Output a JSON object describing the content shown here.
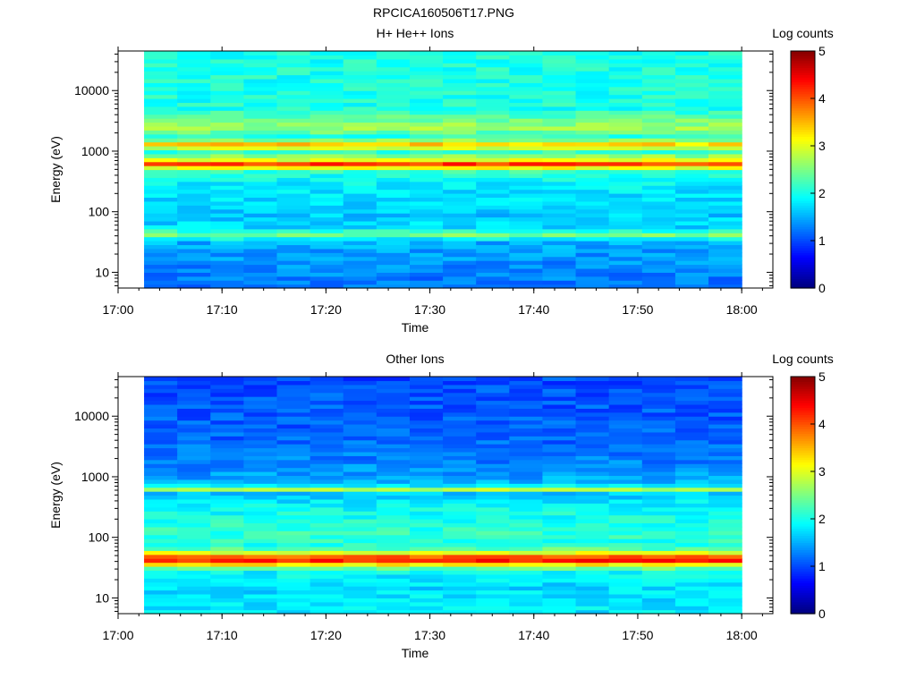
{
  "figure": {
    "title": "RPCICA160506T17.PNG"
  },
  "chart_data": [
    {
      "type": "heatmap",
      "title": "H+ He++ Ions",
      "xlabel": "Time",
      "ylabel": "Energy (eV)",
      "x_scale": "time",
      "y_scale": "log",
      "xlim": [
        "17:00",
        "18:03"
      ],
      "ylim": [
        5.5,
        45000
      ],
      "x_ticks": [
        "17:00",
        "17:10",
        "17:20",
        "17:30",
        "17:40",
        "17:50",
        "18:00"
      ],
      "y_ticks": [
        10,
        100,
        1000,
        10000
      ],
      "y_tick_labels": [
        "10",
        "100",
        "1000",
        "10000"
      ],
      "data_time_range": [
        "17:02.5",
        "18:00"
      ],
      "colorbar": {
        "label": "Log counts",
        "range": [
          0,
          5
        ],
        "ticks": [
          "0",
          "1",
          "2",
          "3",
          "4",
          "5"
        ],
        "colormap": "jet"
      },
      "energy_profile_log_counts": [
        {
          "energy_ev": 6,
          "log_counts": 1.2
        },
        {
          "energy_ev": 12,
          "log_counts": 1.3
        },
        {
          "energy_ev": 22,
          "log_counts": 1.4
        },
        {
          "energy_ev": 33,
          "log_counts": 1.5
        },
        {
          "energy_ev": 42,
          "log_counts": 2.5
        },
        {
          "energy_ev": 55,
          "log_counts": 1.7
        },
        {
          "energy_ev": 100,
          "log_counts": 1.6
        },
        {
          "energy_ev": 250,
          "log_counts": 1.8
        },
        {
          "energy_ev": 450,
          "log_counts": 2.0
        },
        {
          "energy_ev": 560,
          "log_counts": 3.3
        },
        {
          "energy_ev": 640,
          "log_counts": 4.3
        },
        {
          "energy_ev": 720,
          "log_counts": 3.0
        },
        {
          "energy_ev": 1000,
          "log_counts": 2.1
        },
        {
          "energy_ev": 1280,
          "log_counts": 3.5
        },
        {
          "energy_ev": 1700,
          "log_counts": 2.0
        },
        {
          "energy_ev": 2500,
          "log_counts": 2.7
        },
        {
          "energy_ev": 5000,
          "log_counts": 2.0
        },
        {
          "energy_ev": 40000,
          "log_counts": 2.0
        }
      ]
    },
    {
      "type": "heatmap",
      "title": "Other Ions",
      "xlabel": "Time",
      "ylabel": "Energy (eV)",
      "x_scale": "time",
      "y_scale": "log",
      "xlim": [
        "17:00",
        "18:03"
      ],
      "ylim": [
        5.5,
        45000
      ],
      "x_ticks": [
        "17:00",
        "17:10",
        "17:20",
        "17:30",
        "17:40",
        "17:50",
        "18:00"
      ],
      "y_ticks": [
        10,
        100,
        1000,
        10000
      ],
      "y_tick_labels": [
        "10",
        "100",
        "1000",
        "10000"
      ],
      "data_time_range": [
        "17:02.5",
        "18:00"
      ],
      "colorbar": {
        "label": "Log counts",
        "range": [
          0,
          5
        ],
        "ticks": [
          "0",
          "1",
          "2",
          "3",
          "4",
          "5"
        ],
        "colormap": "jet"
      },
      "energy_profile_log_counts": [
        {
          "energy_ev": 6,
          "log_counts": 1.8
        },
        {
          "energy_ev": 15,
          "log_counts": 1.7
        },
        {
          "energy_ev": 28,
          "log_counts": 1.9
        },
        {
          "energy_ev": 35,
          "log_counts": 3.0
        },
        {
          "energy_ev": 44,
          "log_counts": 4.6
        },
        {
          "energy_ev": 52,
          "log_counts": 3.4
        },
        {
          "energy_ev": 70,
          "log_counts": 2.0
        },
        {
          "energy_ev": 120,
          "log_counts": 2.1
        },
        {
          "energy_ev": 300,
          "log_counts": 1.9
        },
        {
          "energy_ev": 550,
          "log_counts": 1.6
        },
        {
          "energy_ev": 640,
          "log_counts": 3.0
        },
        {
          "energy_ev": 750,
          "log_counts": 1.5
        },
        {
          "energy_ev": 1500,
          "log_counts": 1.3
        },
        {
          "energy_ev": 5000,
          "log_counts": 1.1
        },
        {
          "energy_ev": 40000,
          "log_counts": 1.0
        }
      ]
    }
  ]
}
